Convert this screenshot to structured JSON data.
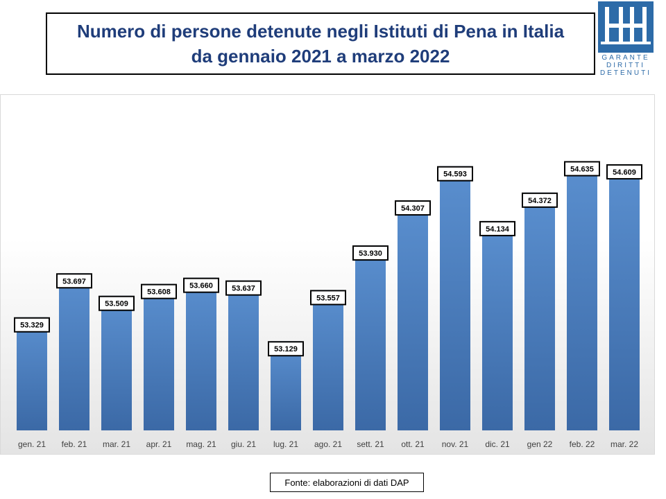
{
  "title": {
    "line1": "Numero di persone detenute negli Istituti di Pena in Italia",
    "line2": "da gennaio 2021 a marzo 2022"
  },
  "logo": {
    "icon": "garante-logo-icon",
    "lines": [
      "GARANTE",
      "DIRITTI",
      "DETENUTI"
    ],
    "color": "#2d6ba8"
  },
  "source": "Fonte: elaborazioni di dati DAP",
  "chart_data": {
    "type": "bar",
    "categories": [
      "gen. 21",
      "feb. 21",
      "mar. 21",
      "apr. 21",
      "mag. 21",
      "giu. 21",
      "lug. 21",
      "ago. 21",
      "sett. 21",
      "ott. 21",
      "nov. 21",
      "dic. 21",
      "gen 22",
      "feb. 22",
      "mar. 22"
    ],
    "values": [
      53329,
      53697,
      53509,
      53608,
      53660,
      53637,
      53129,
      53557,
      53930,
      54307,
      54593,
      54134,
      54372,
      54635,
      54609
    ],
    "labels": [
      "53.329",
      "53.697",
      "53.509",
      "53.608",
      "53.660",
      "53.637",
      "53.129",
      "53.557",
      "53.930",
      "54.307",
      "54.593",
      "54.134",
      "54.372",
      "54.635",
      "54.609"
    ],
    "title": "",
    "xlabel": "",
    "ylabel": "",
    "ylim": [
      52400,
      54800
    ],
    "grid": false,
    "bar_color": "#4a7fbf"
  }
}
